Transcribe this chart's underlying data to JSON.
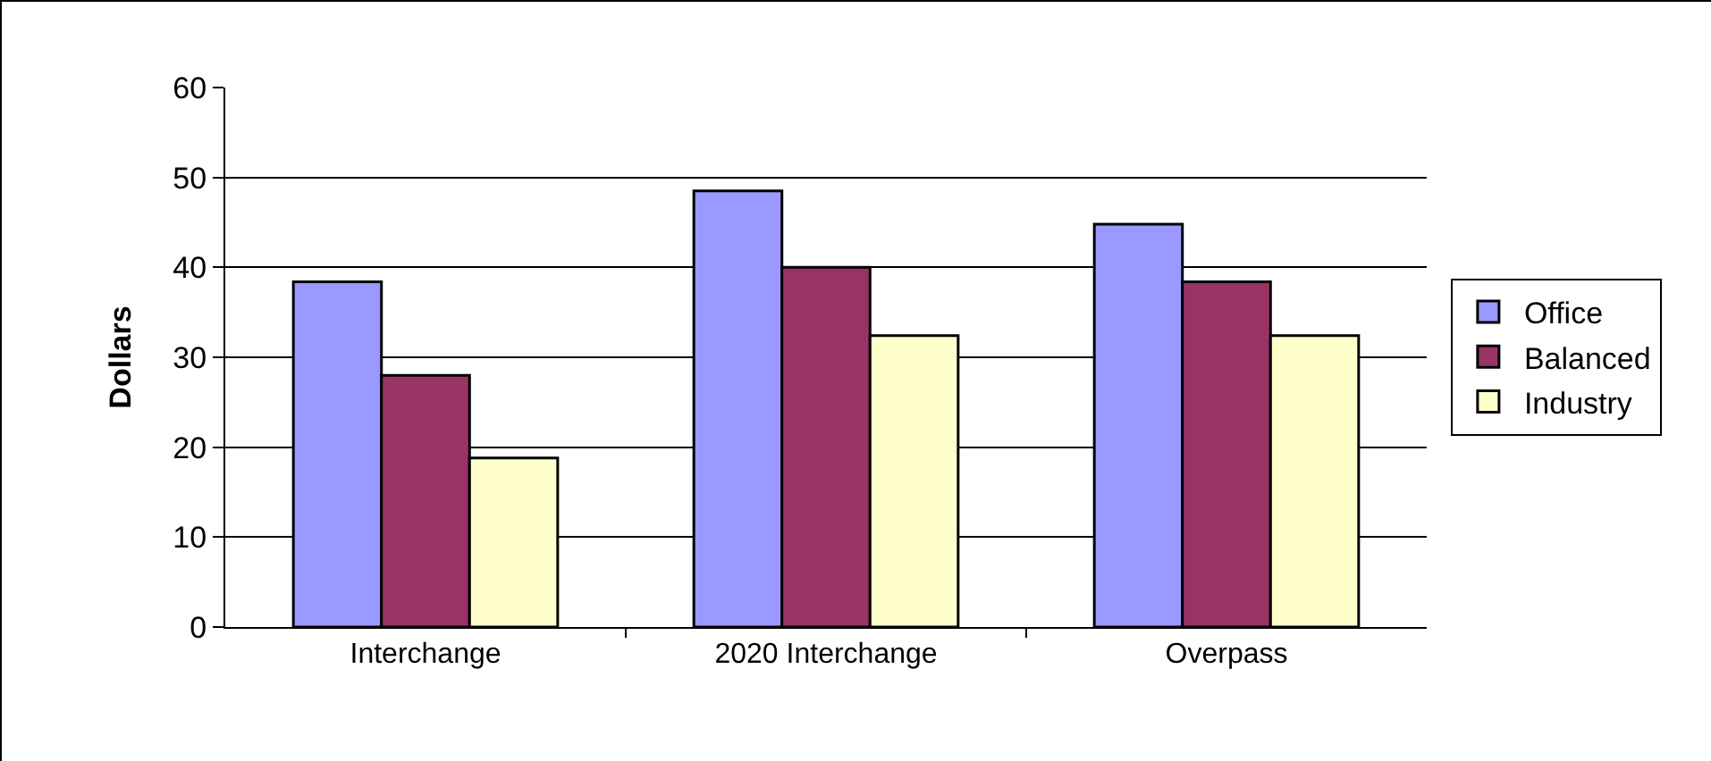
{
  "chart_data": {
    "type": "bar",
    "ylabel": "Dollars",
    "categories": [
      "Interchange",
      "2020 Interchange",
      "Overpass"
    ],
    "series": [
      {
        "name": "Office",
        "color": "#9999ff",
        "values": [
          38.4,
          48.5,
          44.8
        ]
      },
      {
        "name": "Balanced",
        "color": "#993366",
        "values": [
          28.0,
          40.0,
          38.4
        ]
      },
      {
        "name": "Industry",
        "color": "#ffffcc",
        "values": [
          18.8,
          32.4,
          32.4
        ]
      }
    ],
    "ylim": [
      0,
      60
    ],
    "yticks": [
      0,
      10,
      20,
      30,
      40,
      50,
      60
    ],
    "grid": "y",
    "legend": "right"
  }
}
